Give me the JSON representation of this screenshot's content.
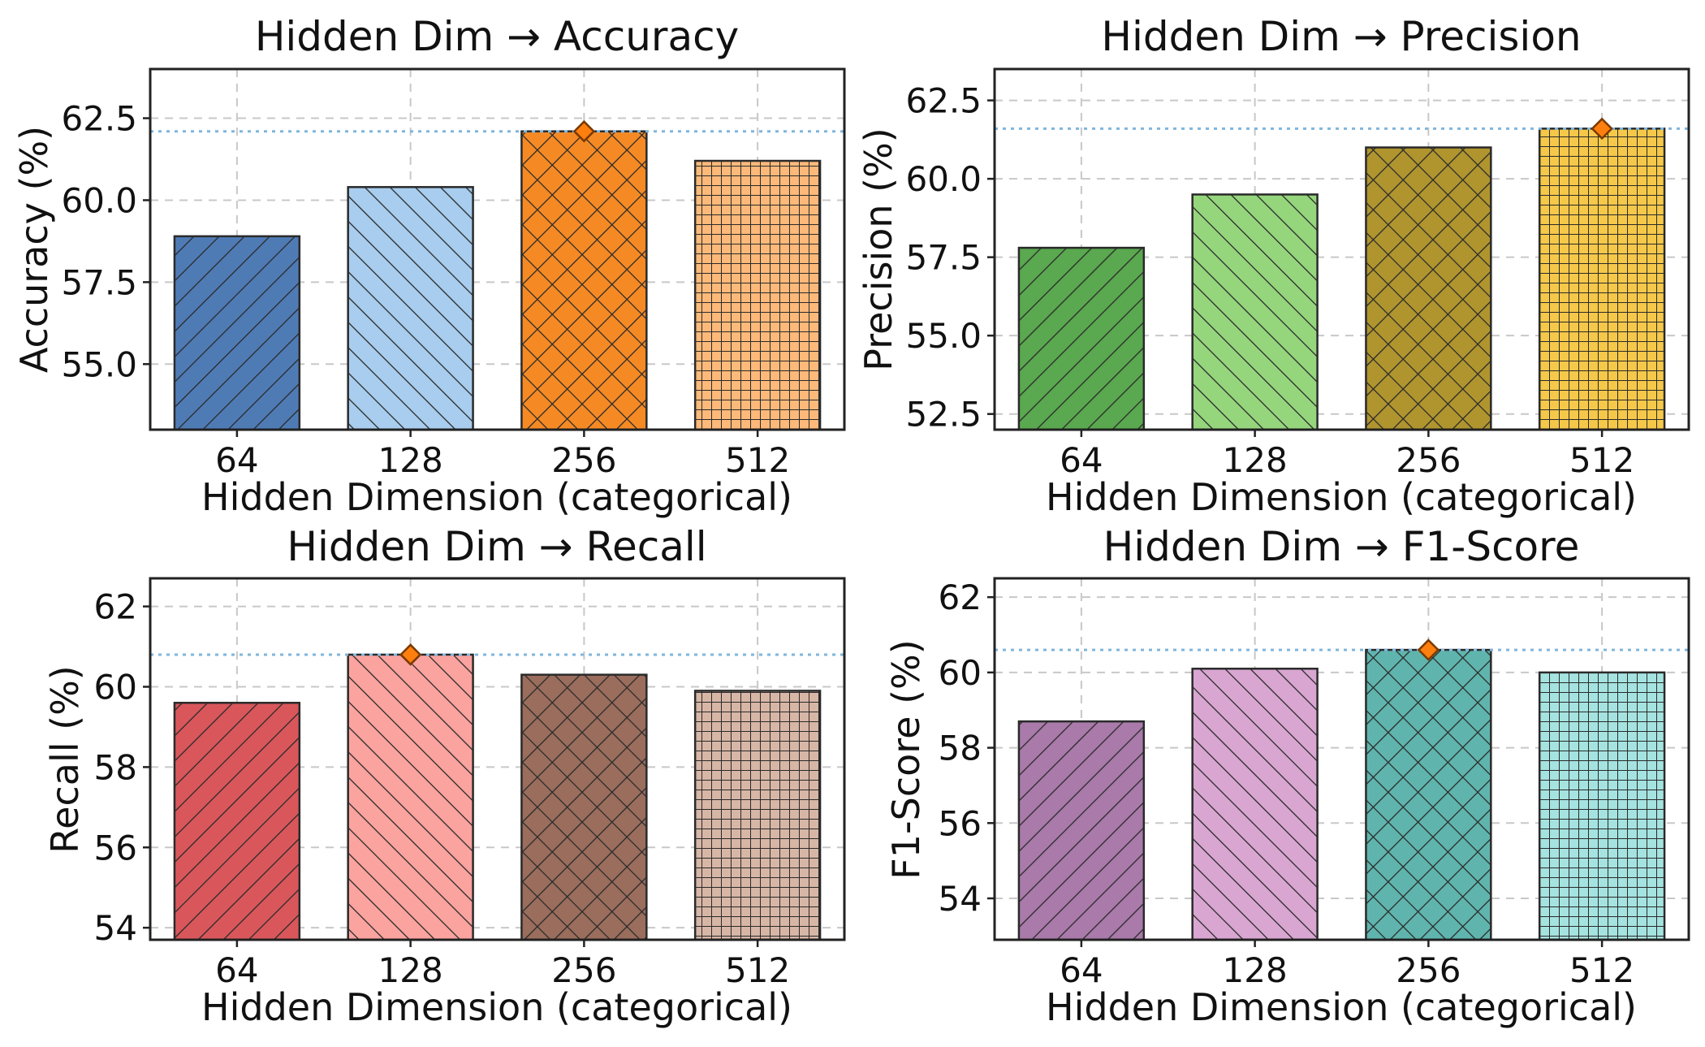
{
  "chart_data": [
    {
      "type": "bar",
      "title": "Hidden Dim → Accuracy",
      "xlabel": "Hidden Dimension (categorical)",
      "ylabel": "Accuracy (%)",
      "categories": [
        "64",
        "128",
        "256",
        "512"
      ],
      "values": [
        58.9,
        60.4,
        62.1,
        61.2
      ],
      "ylim": [
        53.0,
        64.0
      ],
      "yticks": [
        55.0,
        57.5,
        60.0,
        62.5
      ],
      "ytick_labels": [
        "55.0",
        "57.5",
        "60.0",
        "62.5"
      ],
      "best_index": 2,
      "colors": [
        "#4f7bb5",
        "#a8cdee",
        "#f58a25",
        "#fdb97a"
      ],
      "hatches": [
        "diag",
        "anti",
        "cross",
        "grid"
      ]
    },
    {
      "type": "bar",
      "title": "Hidden Dim → Precision",
      "xlabel": "Hidden Dimension (categorical)",
      "ylabel": "Precision (%)",
      "categories": [
        "64",
        "128",
        "256",
        "512"
      ],
      "values": [
        57.8,
        59.5,
        61.0,
        61.6
      ],
      "ylim": [
        52.0,
        63.5
      ],
      "yticks": [
        52.5,
        55.0,
        57.5,
        60.0,
        62.5
      ],
      "ytick_labels": [
        "52.5",
        "55.0",
        "57.5",
        "60.0",
        "62.5"
      ],
      "best_index": 3,
      "colors": [
        "#5aa84f",
        "#95d67d",
        "#b0952f",
        "#f5c84a"
      ],
      "hatches": [
        "diag",
        "anti",
        "cross",
        "grid"
      ]
    },
    {
      "type": "bar",
      "title": "Hidden Dim → Recall",
      "xlabel": "Hidden Dimension (categorical)",
      "ylabel": "Recall (%)",
      "categories": [
        "64",
        "128",
        "256",
        "512"
      ],
      "values": [
        59.6,
        60.8,
        60.3,
        59.9
      ],
      "ylim": [
        53.7,
        62.7
      ],
      "yticks": [
        54,
        56,
        58,
        60,
        62
      ],
      "ytick_labels": [
        "54",
        "56",
        "58",
        "60",
        "62"
      ],
      "best_index": 1,
      "colors": [
        "#d9575b",
        "#fba39f",
        "#9a6d5c",
        "#d7b6a6"
      ],
      "hatches": [
        "diag",
        "anti",
        "cross",
        "grid"
      ]
    },
    {
      "type": "bar",
      "title": "Hidden Dim → F1-Score",
      "xlabel": "Hidden Dimension (categorical)",
      "ylabel": "F1-Score (%)",
      "categories": [
        "64",
        "128",
        "256",
        "512"
      ],
      "values": [
        58.7,
        60.1,
        60.6,
        60.0
      ],
      "ylim": [
        52.9,
        62.5
      ],
      "yticks": [
        54,
        56,
        58,
        60,
        62
      ],
      "ytick_labels": [
        "54",
        "56",
        "58",
        "60",
        "62"
      ],
      "best_index": 2,
      "colors": [
        "#a97aaa",
        "#d9a6d2",
        "#5fb5ad",
        "#a5e3e0"
      ],
      "hatches": [
        "diag",
        "anti",
        "cross",
        "grid"
      ]
    }
  ]
}
